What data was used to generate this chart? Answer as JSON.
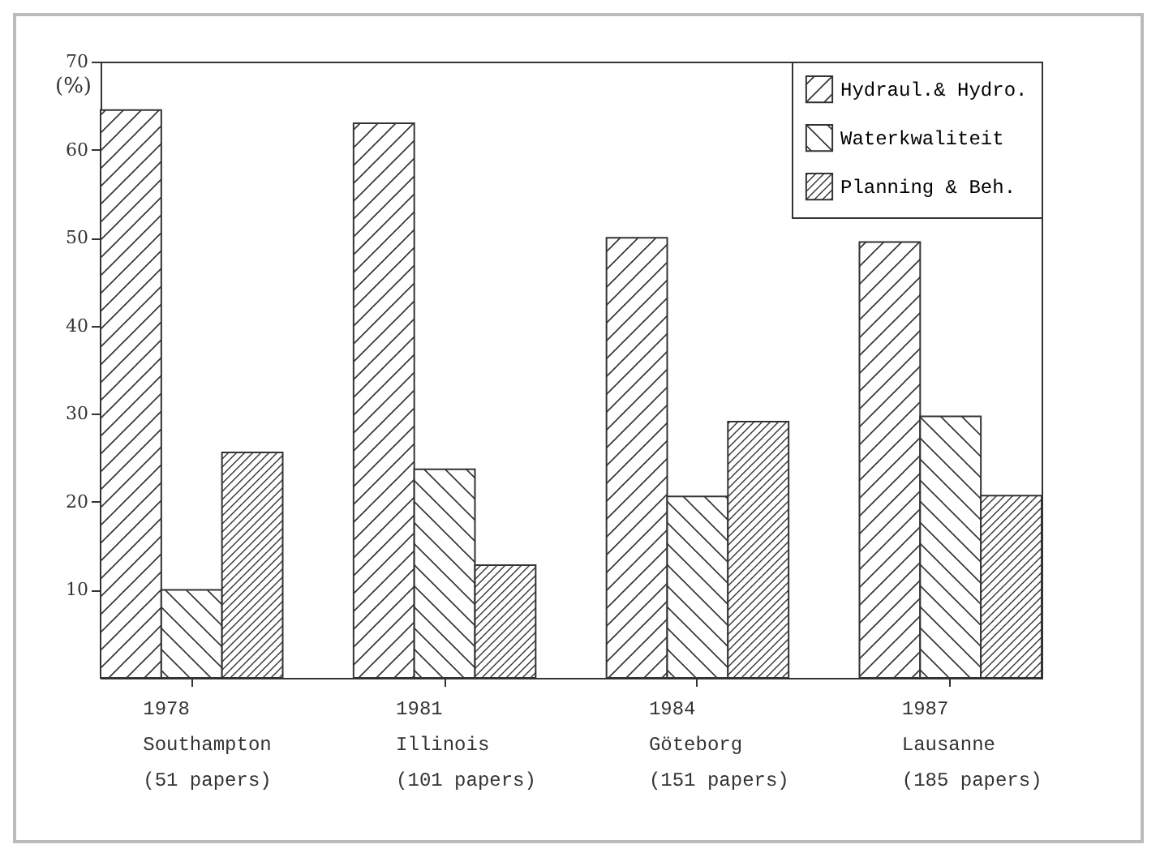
{
  "chart_data": {
    "type": "bar",
    "ylabel": "(%)",
    "categories": [
      "1978\nSouthampton\n(51 papers)",
      "1981\nIllinois\n(101 papers)",
      "1984\nGöteborg\n(151 papers)",
      "1987\nLausanne\n(185 papers)"
    ],
    "series": [
      {
        "name": "Hydraul.& Hydro.",
        "color": "#333333",
        "values": [
          64.5,
          63,
          50,
          49.5
        ]
      },
      {
        "name": "Waterkwaliteit",
        "color": "#333333",
        "values": [
          10,
          23.7,
          20.6,
          29.7
        ]
      },
      {
        "name": "Planning & Beh.",
        "color": "#333333",
        "values": [
          25.6,
          12.8,
          29.1,
          20.7
        ]
      }
    ],
    "ylim": [
      0,
      70
    ],
    "yticks": [
      10,
      20,
      30,
      40,
      50,
      60,
      70
    ],
    "grid": false,
    "legend": "top right"
  }
}
